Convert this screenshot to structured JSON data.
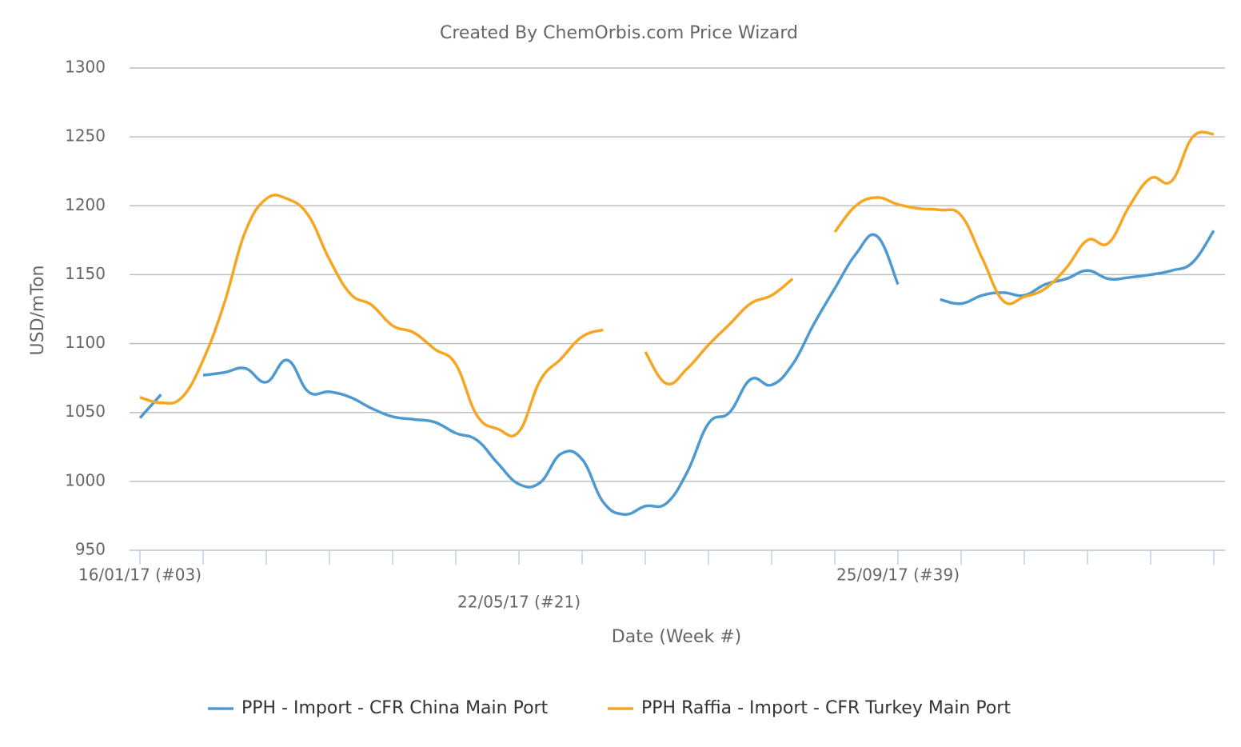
{
  "chart_data": {
    "type": "line",
    "title": "Created By ChemOrbis.com Price Wizard",
    "x_label": "Date (Week #)",
    "y_label": "USD/mTon",
    "categories": [
      "16/01/17 (#03)",
      null,
      null,
      null,
      null,
      null,
      null,
      null,
      null,
      null,
      null,
      null,
      null,
      null,
      null,
      null,
      null,
      null,
      "22/05/17 (#21)",
      null,
      null,
      null,
      null,
      null,
      null,
      null,
      null,
      null,
      null,
      null,
      null,
      null,
      null,
      null,
      null,
      null,
      "25/09/17 (#39)",
      null,
      null,
      null,
      null,
      null,
      null,
      null,
      null,
      null,
      null,
      null,
      null,
      null,
      null,
      null
    ],
    "series": [
      {
        "name": "PPH - Import - CFR China Main Port",
        "color": "#4e9ad0",
        "values": [
          1046,
          1063,
          null,
          1077,
          1079,
          1082,
          1072,
          1088,
          1065,
          1065,
          1061,
          1053,
          1047,
          1045,
          1043,
          1035,
          1030,
          1013,
          998,
          999,
          1020,
          1016,
          985,
          976,
          982,
          984,
          1007,
          1042,
          1050,
          1074,
          1070,
          1085,
          1114,
          1140,
          1165,
          1178,
          1143,
          null,
          1132,
          1129,
          1135,
          1137,
          1135,
          1143,
          1147,
          1153,
          1147,
          1148,
          1150,
          1153,
          1159,
          1182
        ]
      },
      {
        "name": "PPH Raffia - Import - CFR Turkey Main Port",
        "color": "#f5a623",
        "values": [
          1061,
          1057,
          1061,
          1088,
          1129,
          1181,
          1205,
          1205,
          1193,
          1161,
          1136,
          1128,
          1113,
          1108,
          1096,
          1085,
          1048,
          1038,
          1036,
          1073,
          1089,
          1105,
          1110,
          null,
          1094,
          1071,
          1082,
          1099,
          1114,
          1129,
          1135,
          1147,
          null,
          1181,
          1200,
          1206,
          1201,
          1198,
          1197,
          1193,
          1162,
          1131,
          1134,
          1140,
          1155,
          1175,
          1173,
          1200,
          1220,
          1218,
          1250,
          1252
        ]
      }
    ],
    "ylim": [
      950,
      1300
    ],
    "yticks": [
      950,
      1000,
      1050,
      1100,
      1150,
      1200,
      1250,
      1300
    ],
    "grid": true,
    "legend": "bottom"
  }
}
